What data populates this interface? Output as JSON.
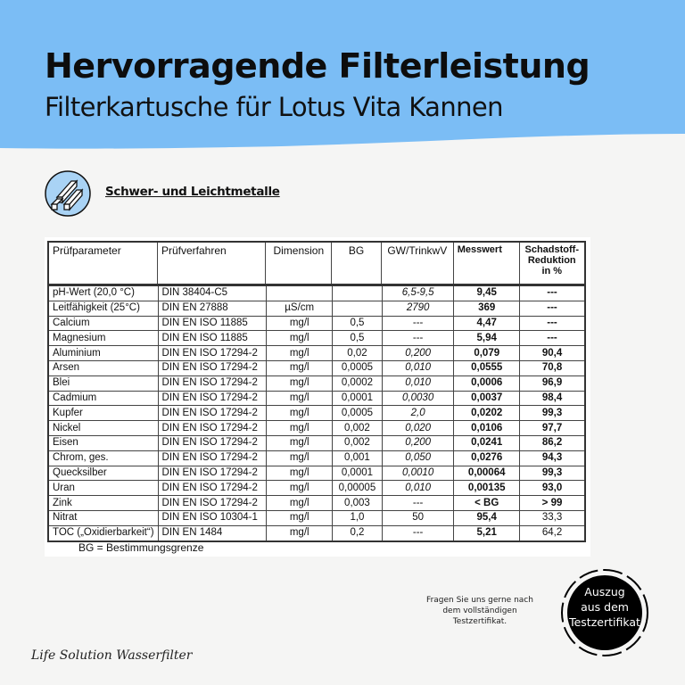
{
  "colors": {
    "banner": "#7bbdf5",
    "background": "#f5f5f4",
    "badge": "#000000"
  },
  "header": {
    "title": "Hervorragende Filterleistung",
    "subtitle": "Filterkartusche für Lotus Vita Kannen"
  },
  "category": {
    "icon": "metal-bars-icon",
    "label": "Schwer- und Leichtmetalle"
  },
  "table": {
    "columns": [
      "Prüfparameter",
      "Prüfverfahren",
      "Dimension",
      "BG",
      "GW/TrinkwV",
      "Messwert",
      "Schadstoff-Reduktion in %"
    ],
    "rows": [
      [
        "pH-Wert (20,0 °C)",
        "DIN 38404-C5",
        "",
        "",
        "6,5-9,5",
        "9,45",
        "---"
      ],
      [
        "Leitfähigkeit (25°C)",
        "DIN EN 27888",
        "µS/cm",
        "",
        "2790",
        "369",
        "---"
      ],
      [
        "Calcium",
        "DIN EN ISO 11885",
        "mg/l",
        "0,5",
        "---",
        "4,47",
        "---"
      ],
      [
        "Magnesium",
        "DIN EN ISO 11885",
        "mg/l",
        "0,5",
        "---",
        "5,94",
        "---"
      ],
      [
        "Aluminium",
        "DIN EN ISO 17294-2",
        "mg/l",
        "0,02",
        "0,200",
        "0,079",
        "90,4"
      ],
      [
        "Arsen",
        "DIN EN ISO 17294-2",
        "mg/l",
        "0,0005",
        "0,010",
        "0,0555",
        "70,8"
      ],
      [
        "Blei",
        "DIN EN ISO 17294-2",
        "mg/l",
        "0,0002",
        "0,010",
        "0,0006",
        "96,9"
      ],
      [
        "Cadmium",
        "DIN EN ISO 17294-2",
        "mg/l",
        "0,0001",
        "0,0030",
        "0,0037",
        "98,4"
      ],
      [
        "Kupfer",
        "DIN EN ISO 17294-2",
        "mg/l",
        "0,0005",
        "2,0",
        "0,0202",
        "99,3"
      ],
      [
        "Nickel",
        "DIN EN ISO 17294-2",
        "mg/l",
        "0,002",
        "0,020",
        "0,0106",
        "97,7"
      ],
      [
        "Eisen",
        "DIN EN ISO 17294-2",
        "mg/l",
        "0,002",
        "0,200",
        "0,0241",
        "86,2"
      ],
      [
        "Chrom, ges.",
        "DIN EN ISO 17294-2",
        "mg/l",
        "0,001",
        "0,050",
        "0,0276",
        "94,3"
      ],
      [
        "Quecksilber",
        "DIN EN ISO 17294-2",
        "mg/l",
        "0,0001",
        "0,0010",
        "0,00064",
        "99,3"
      ],
      [
        "Uran",
        "DIN EN ISO 17294-2",
        "mg/l",
        "0,00005",
        "0,010",
        "0,00135",
        "93,0"
      ],
      [
        "Zink",
        "DIN EN ISO 17294-2",
        "mg/l",
        "0,003",
        "---",
        "< BG",
        "> 99"
      ],
      [
        "Nitrat",
        "DIN EN ISO 10304-1",
        "mg/l",
        "1,0",
        "50",
        "95,4",
        "33,3"
      ],
      [
        "TOC („Oxidierbarkeit“)",
        "DIN EN 1484",
        "mg/l",
        "0,2",
        "---",
        "5,21",
        "64,2"
      ]
    ],
    "note": "BG = Bestimmungsgrenze"
  },
  "cta": "Fragen Sie uns gerne nach dem vollständigen Testzertifikat.",
  "badge": {
    "line1": "Auszug",
    "line2": "aus dem",
    "line3": "Testzertifikat"
  },
  "brand": "Life Solution Wasserfilter"
}
